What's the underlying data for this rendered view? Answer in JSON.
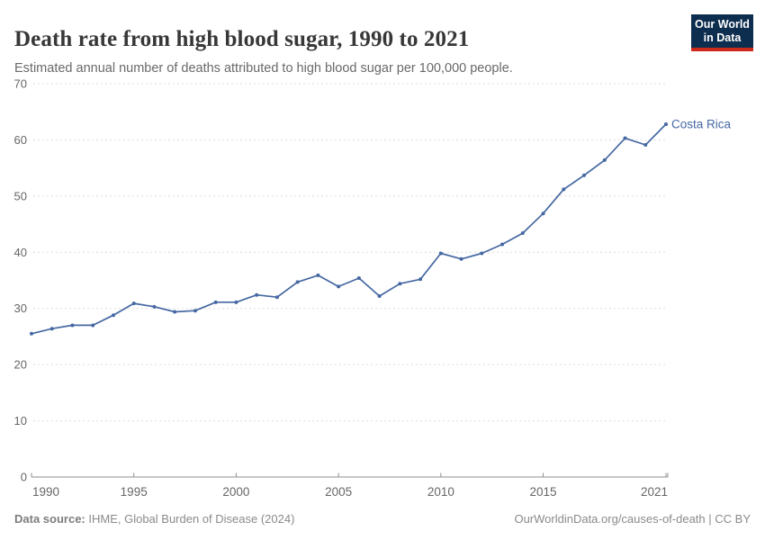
{
  "header": {
    "title": "Death rate from high blood sugar, 1990 to 2021",
    "subtitle": "Estimated annual number of deaths attributed to high blood sugar per 100,000 people."
  },
  "logo": {
    "line1": "Our World",
    "line2": "in Data"
  },
  "colors": {
    "accent_blue": "#4568A2",
    "logo_bg": "#0D2E4E",
    "logo_bar": "#CE2A1C",
    "grid": "#DDDDDD",
    "axis": "#8F8F8F",
    "tick_text": "#666666",
    "title_text": "#373737",
    "subtitle_text": "#696969",
    "footer_text": "#8A8A8A"
  },
  "chart_data": {
    "type": "line",
    "title": "Death rate from high blood sugar, 1990 to 2021",
    "subtitle": "Estimated annual number of deaths attributed to high blood sugar per 100,000 people.",
    "xlabel": "",
    "ylabel": "",
    "x": [
      1990,
      1991,
      1992,
      1993,
      1994,
      1995,
      1996,
      1997,
      1998,
      1999,
      2000,
      2001,
      2002,
      2003,
      2004,
      2005,
      2006,
      2007,
      2008,
      2009,
      2010,
      2011,
      2012,
      2013,
      2014,
      2015,
      2016,
      2017,
      2018,
      2019,
      2020,
      2021
    ],
    "series": [
      {
        "name": "Costa Rica",
        "color": "#4568A2",
        "values": [
          25.5,
          26.4,
          27.0,
          27.0,
          28.8,
          30.9,
          30.3,
          29.4,
          29.6,
          31.1,
          31.1,
          32.4,
          32.0,
          34.7,
          35.9,
          33.9,
          35.4,
          32.2,
          34.4,
          35.2,
          39.8,
          38.8,
          39.8,
          41.4,
          43.4,
          46.9,
          51.2,
          53.7,
          56.4,
          60.3,
          59.1,
          62.8
        ]
      }
    ],
    "ylim": [
      0,
      70
    ],
    "xlim": [
      1990,
      2021
    ],
    "yticks": [
      0,
      10,
      20,
      30,
      40,
      50,
      60,
      70
    ],
    "xticks": [
      1990,
      1995,
      2000,
      2005,
      2010,
      2015,
      2021
    ],
    "grid": "horizontal-dashed",
    "legend": "end-of-line-label",
    "markers": true
  },
  "footer": {
    "source_label": "Data source:",
    "source_value": " IHME, Global Burden of Disease (2024)",
    "link": "OurWorldinData.org/causes-of-death",
    "divider": " | ",
    "license": "CC BY"
  }
}
